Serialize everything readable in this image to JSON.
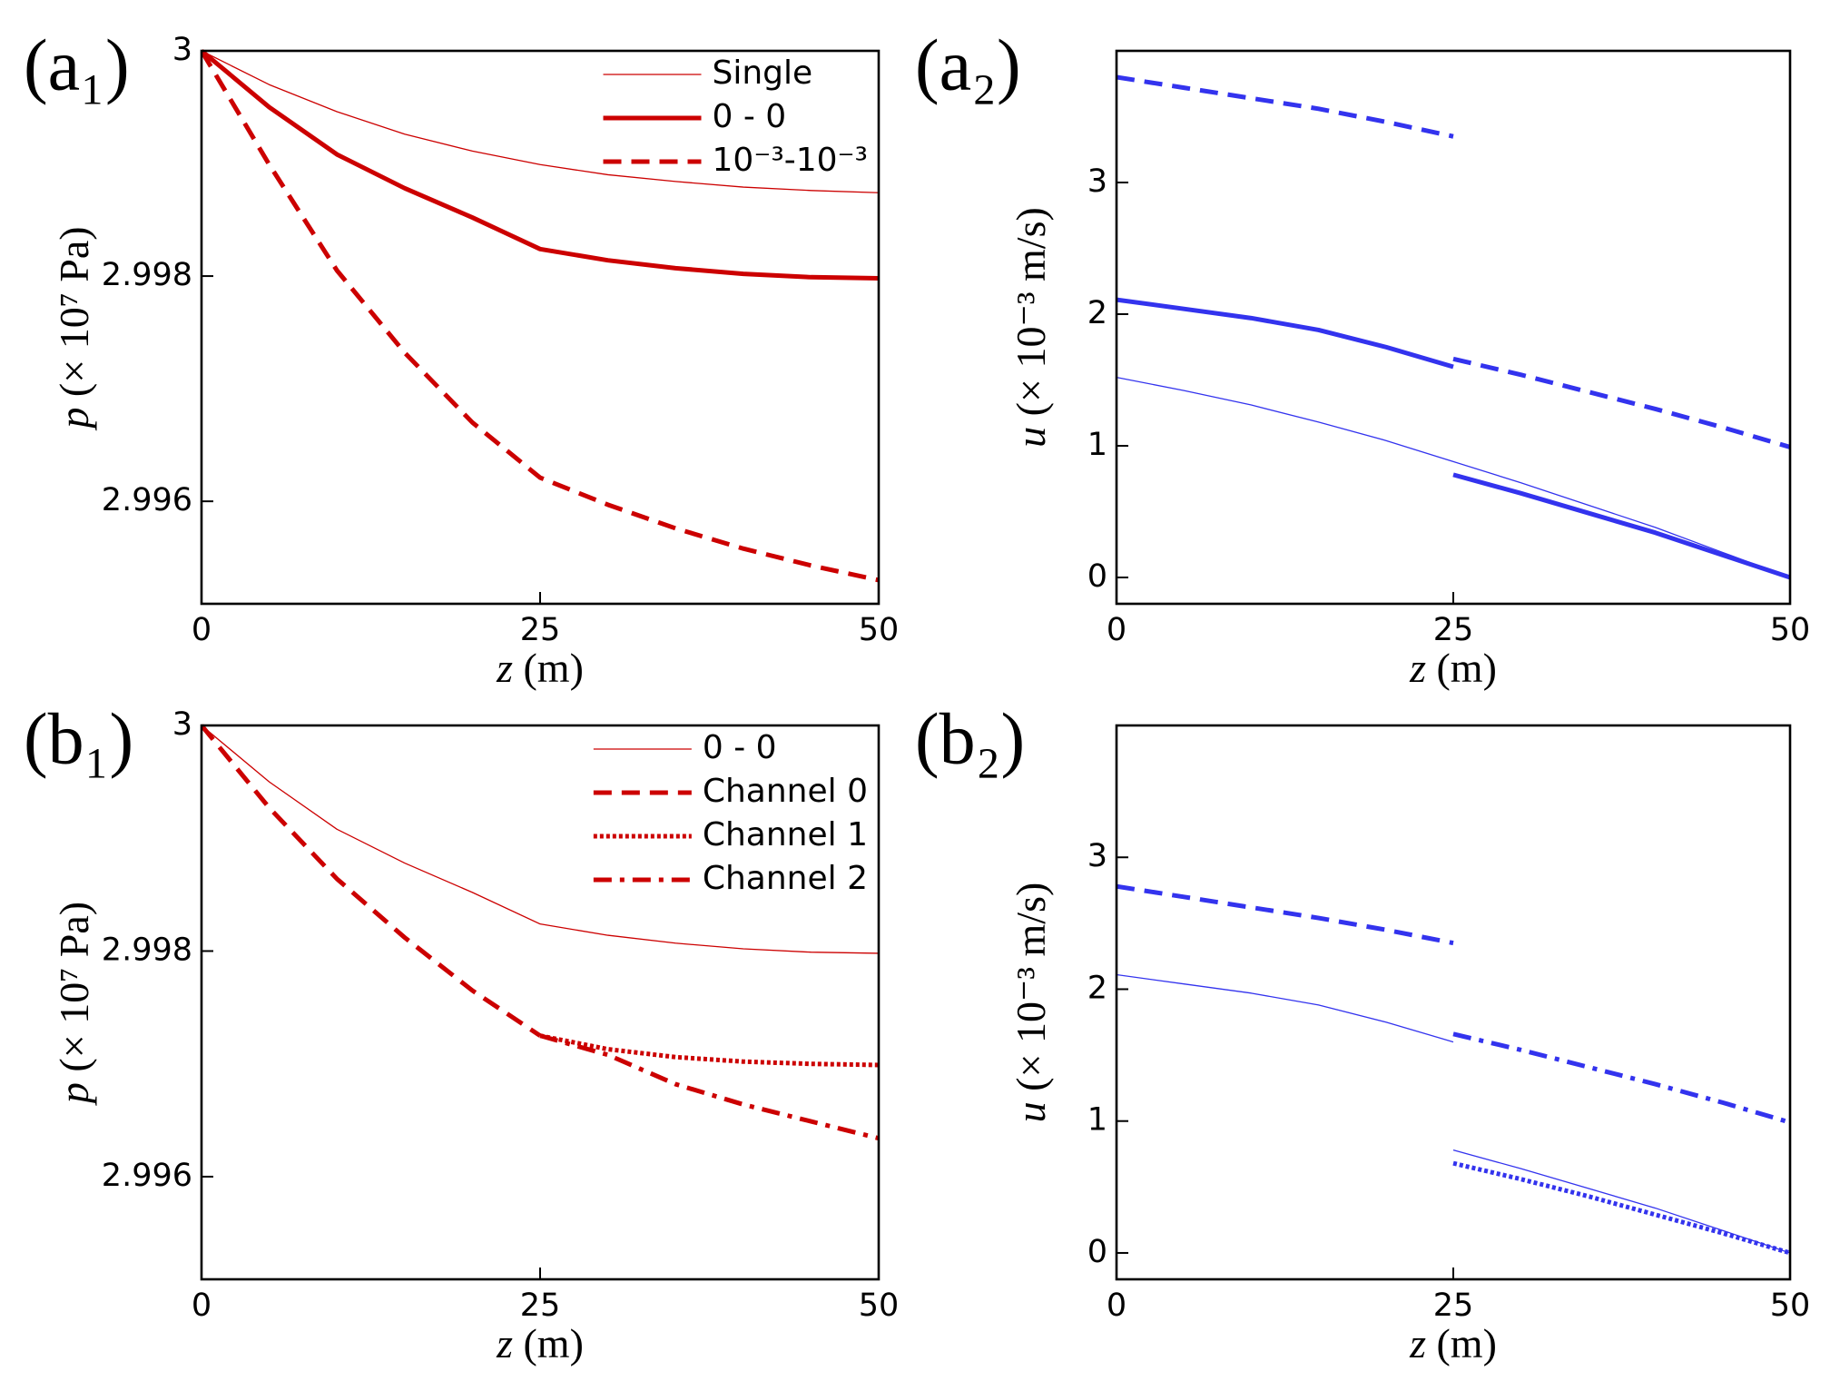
{
  "chart_data": [
    {
      "type": "line",
      "panel_label": "(a₁)",
      "xlabel": {
        "var": "z",
        "unit": " (m)"
      },
      "ylabel": {
        "var": "p",
        "unit": " (× 10⁷ Pa)"
      },
      "x": [
        0,
        5,
        10,
        15,
        20,
        25,
        30,
        35,
        40,
        45,
        50
      ],
      "xlim": [
        0,
        50
      ],
      "xticks": [
        0,
        25,
        50
      ],
      "ylim": [
        2.99509,
        3.0
      ],
      "yticks": [
        2.996,
        2.998,
        3
      ],
      "legend": "upper right",
      "series": [
        {
          "name": "Single",
          "color": "#cc0000",
          "style": "solid",
          "linewidth": 1.3,
          "values": [
            3.0,
            2.9997,
            2.99946,
            2.99926,
            2.99911,
            2.99899,
            2.9989,
            2.99884,
            2.99879,
            2.99876,
            2.99874
          ]
        },
        {
          "name": "0 - 0",
          "color": "#cc0000",
          "style": "solid",
          "linewidth": 5,
          "values": [
            3.0,
            2.9995,
            2.99908,
            2.99878,
            2.99852,
            2.99824,
            2.99814,
            2.99807,
            2.99802,
            2.99799,
            2.99798
          ]
        },
        {
          "name": "10⁻³-10⁻³",
          "color": "#cc0000",
          "style": "dashed",
          "linewidth": 5,
          "values": [
            3.0,
            2.99899,
            2.99805,
            2.99732,
            2.9967,
            2.99621,
            2.99597,
            2.99576,
            2.99558,
            2.99543,
            2.9953
          ]
        }
      ]
    },
    {
      "type": "line",
      "panel_label": "(a₂)",
      "xlabel": {
        "var": "z",
        "unit": " (m)"
      },
      "ylabel": {
        "var": "u",
        "unit": " (× 10⁻³ m/s)"
      },
      "x": [
        0,
        5,
        10,
        15,
        20,
        25,
        null,
        25,
        30,
        35,
        40,
        45,
        50
      ],
      "xlim": [
        0,
        50
      ],
      "xticks": [
        0,
        25,
        50
      ],
      "ylim": [
        -0.2,
        4.0
      ],
      "yticks": [
        0,
        1,
        2,
        3
      ],
      "series": [
        {
          "color": "#3333ee",
          "style": "solid",
          "linewidth": 1.3,
          "values": [
            1.52,
            1.42,
            1.31,
            1.18,
            1.04,
            0.88,
            null,
            0.88,
            0.72,
            0.55,
            0.38,
            0.19,
            0.0
          ]
        },
        {
          "color": "#3333ee",
          "style": "solid",
          "linewidth": 5,
          "values": [
            2.11,
            2.04,
            1.97,
            1.88,
            1.75,
            1.6,
            null,
            0.78,
            0.64,
            0.49,
            0.34,
            0.17,
            0.0
          ]
        },
        {
          "color": "#3333ee",
          "style": "dashed",
          "linewidth": 5,
          "values": [
            3.8,
            3.72,
            3.64,
            3.56,
            3.46,
            3.35,
            null,
            1.66,
            1.54,
            1.41,
            1.28,
            1.14,
            0.99
          ]
        }
      ]
    },
    {
      "type": "line",
      "panel_label": "(b₁)",
      "xlabel": {
        "var": "z",
        "unit": " (m)"
      },
      "ylabel": {
        "var": "p",
        "unit": " (× 10⁷ Pa)"
      },
      "x": [
        0,
        5,
        10,
        15,
        20,
        25,
        30,
        35,
        40,
        45,
        50
      ],
      "xlim": [
        0,
        50
      ],
      "xticks": [
        0,
        25,
        50
      ],
      "ylim": [
        2.99509,
        3.0
      ],
      "yticks": [
        2.996,
        2.998,
        3
      ],
      "legend": "upper right",
      "series": [
        {
          "name": "0 - 0",
          "color": "#cc0000",
          "style": "solid",
          "linewidth": 1.3,
          "values": [
            3.0,
            2.9995,
            2.99908,
            2.99878,
            2.99852,
            2.99824,
            2.99814,
            2.99807,
            2.99802,
            2.99799,
            2.99798
          ]
        },
        {
          "name": "Channel 0",
          "color": "#cc0000",
          "style": "dashed",
          "linewidth": 5,
          "values": [
            3.0,
            2.99927,
            2.99864,
            2.99812,
            2.99765,
            2.99725,
            null,
            null,
            null,
            null,
            null
          ]
        },
        {
          "name": "Channel 1",
          "color": "#cc0000",
          "style": "dotted",
          "linewidth": 5,
          "values": [
            null,
            null,
            null,
            null,
            null,
            2.99725,
            2.99713,
            2.99706,
            2.99702,
            2.997,
            2.99699
          ]
        },
        {
          "name": "Channel 2",
          "color": "#cc0000",
          "style": "dashdot",
          "linewidth": 5,
          "values": [
            null,
            null,
            null,
            null,
            null,
            2.99725,
            2.99708,
            2.99682,
            2.99664,
            2.99649,
            2.99634
          ]
        }
      ]
    },
    {
      "type": "line",
      "panel_label": "(b₂)",
      "xlabel": {
        "var": "z",
        "unit": " (m)"
      },
      "ylabel": {
        "var": "u",
        "unit": " (× 10⁻³ m/s)"
      },
      "x": [
        0,
        5,
        10,
        15,
        20,
        25,
        null,
        25,
        30,
        35,
        40,
        45,
        50
      ],
      "xlim": [
        0,
        50
      ],
      "xticks": [
        0,
        25,
        50
      ],
      "ylim": [
        -0.2,
        4.0
      ],
      "yticks": [
        0,
        1,
        2,
        3
      ],
      "series": [
        {
          "color": "#3333ee",
          "style": "solid",
          "linewidth": 1.3,
          "values": [
            2.11,
            2.04,
            1.97,
            1.88,
            1.75,
            1.6,
            null,
            0.78,
            0.64,
            0.49,
            0.34,
            0.17,
            0.0
          ]
        },
        {
          "color": "#3333ee",
          "style": "dashed",
          "linewidth": 5,
          "values": [
            2.78,
            2.7,
            2.62,
            2.54,
            2.45,
            2.35,
            null,
            null,
            null,
            null,
            null,
            null,
            null
          ]
        },
        {
          "color": "#3333ee",
          "style": "dotted",
          "linewidth": 5,
          "values": [
            null,
            null,
            null,
            null,
            null,
            null,
            null,
            0.68,
            0.56,
            0.43,
            0.29,
            0.15,
            0.0
          ]
        },
        {
          "color": "#3333ee",
          "style": "dashdot",
          "linewidth": 5,
          "values": [
            null,
            null,
            null,
            null,
            null,
            null,
            null,
            1.66,
            1.54,
            1.41,
            1.28,
            1.14,
            0.99
          ]
        }
      ]
    }
  ]
}
